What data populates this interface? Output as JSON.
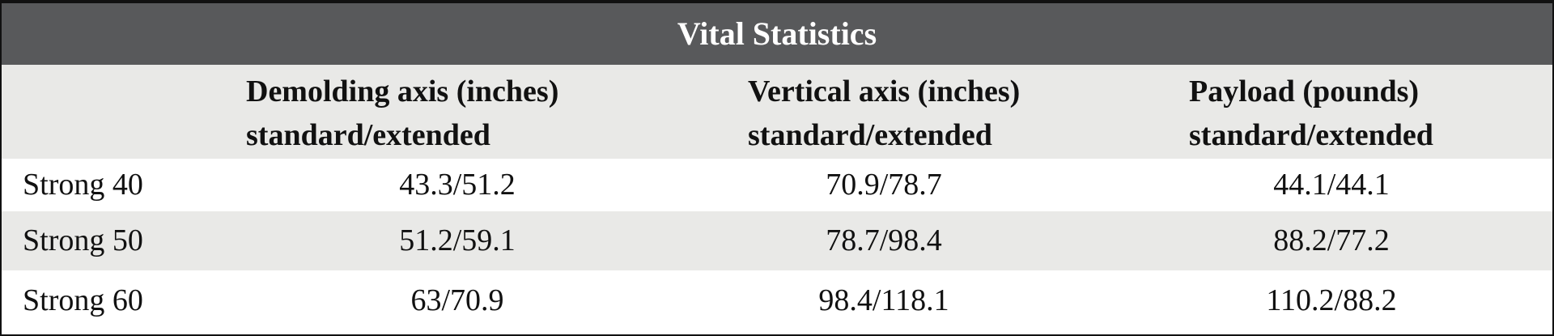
{
  "table": {
    "title": "Vital Statistics",
    "columns": [
      [
        "Demolding axis (inches)",
        "standard/extended"
      ],
      [
        "Vertical axis (inches)",
        "standard/extended"
      ],
      [
        "Payload (pounds)",
        "standard/extended"
      ]
    ],
    "rows": [
      [
        "Strong 40",
        "43.3/51.2",
        "70.9/78.7",
        "44.1/44.1"
      ],
      [
        "Strong 50",
        "51.2/59.1",
        "78.7/98.4",
        "88.2/77.2"
      ],
      [
        "Strong 60",
        "63/70.9",
        "98.4/118.1",
        "110.2/88.2"
      ]
    ]
  }
}
